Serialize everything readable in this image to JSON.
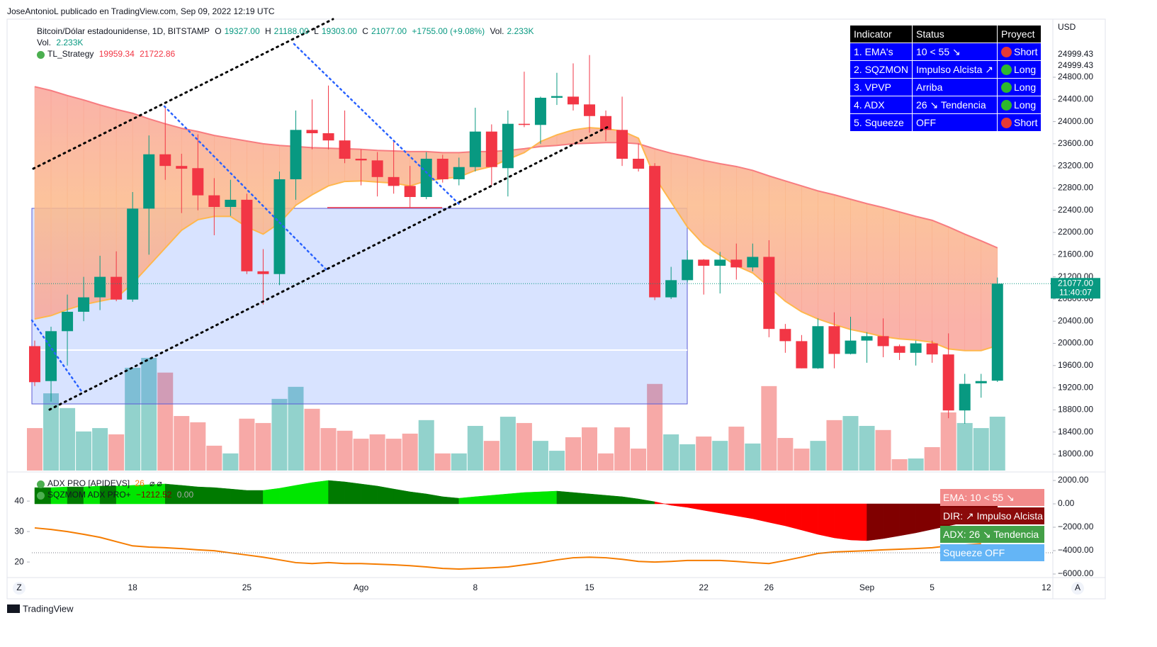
{
  "header": "JoseAntonioL publicado en TradingView.com, Sep 09, 2022 12:19 UTC",
  "footer": "TradingView",
  "buttons": [
    "Z",
    "A"
  ],
  "chart_data": [
    {
      "type": "candlestick",
      "title": "Bitcoin/Dólar estadounidense, 1D, BITSTAMP",
      "ohlc_labels": [
        "O",
        "H",
        "L",
        "C"
      ],
      "ohlc_readout": [
        "19327.00",
        "21188.00",
        "19303.00",
        "21077.00"
      ],
      "change": "+1755.00 (+9.08%)",
      "volume_label": "Vol.",
      "volume_readout": "2.233K",
      "strategy_name": "TL_Strategy",
      "currency": "USD",
      "price_tag": "21077.00",
      "countdown": "11:40:07",
      "high_tags": [
        "24999.43",
        "24999.43"
      ],
      "categories": [
        null,
        null,
        null,
        null,
        null,
        null,
        "18",
        null,
        null,
        null,
        null,
        null,
        null,
        "25",
        null,
        null,
        null,
        null,
        null,
        null,
        "Ago",
        null,
        null,
        null,
        null,
        null,
        null,
        "8",
        null,
        null,
        null,
        null,
        null,
        null,
        "15",
        null,
        null,
        null,
        null,
        null,
        null,
        "22",
        null,
        null,
        null,
        "26",
        null,
        null,
        null,
        null,
        null,
        "Sep",
        null,
        null,
        null,
        "5",
        null,
        null,
        null,
        null,
        null,
        null,
        "12"
      ],
      "open": [
        19950,
        19320,
        20220,
        20570,
        20830,
        21200,
        20790,
        22430,
        23410,
        23200,
        23160,
        22670,
        22460,
        22590,
        21300,
        21250,
        22960,
        23850,
        23790,
        23660,
        23330,
        23300,
        23000,
        22840,
        22640,
        23330,
        22960,
        23180,
        23820,
        23160,
        23960,
        23940,
        24430,
        24450,
        24310,
        24100,
        23850,
        23330,
        23200,
        20830,
        21140,
        21510,
        21400,
        21510,
        21370,
        21560,
        20260,
        20040,
        19550,
        20310,
        19810,
        20050,
        20130,
        19950,
        19830,
        20000,
        19800,
        18790,
        19280,
        19327,
        null,
        null,
        null
      ],
      "high": [
        20050,
        20300,
        20880,
        21200,
        21580,
        21660,
        22730,
        23750,
        24280,
        23420,
        23770,
        22980,
        22950,
        22700,
        21700,
        23100,
        24200,
        24400,
        24650,
        24200,
        23500,
        23450,
        23650,
        23200,
        23450,
        23400,
        23350,
        24250,
        23950,
        24200,
        24900,
        24450,
        24880,
        25050,
        25200,
        24200,
        24450,
        23600,
        23250,
        21380,
        21680,
        21520,
        21650,
        21800,
        21800,
        21860,
        20350,
        20150,
        20450,
        20560,
        20480,
        20200,
        20450,
        19980,
        20050,
        20050,
        20180,
        19450,
        19450,
        21188,
        null,
        null,
        null
      ],
      "low": [
        19230,
        18950,
        19600,
        20400,
        20600,
        20760,
        20750,
        21600,
        22950,
        22350,
        22400,
        21950,
        22300,
        21250,
        20700,
        21050,
        22590,
        23500,
        23500,
        23250,
        22850,
        22650,
        22700,
        22450,
        22600,
        22900,
        22850,
        23100,
        22850,
        22650,
        23900,
        23600,
        24300,
        24200,
        23800,
        23650,
        23200,
        23100,
        20780,
        20800,
        21100,
        20880,
        20900,
        21150,
        21300,
        20110,
        19830,
        19550,
        19540,
        19550,
        19800,
        19650,
        19750,
        19700,
        19600,
        19650,
        18650,
        18550,
        19020,
        19303,
        null,
        null,
        null
      ],
      "close": [
        19300,
        20220,
        20570,
        20830,
        21200,
        20790,
        22430,
        23410,
        23200,
        23150,
        22670,
        22460,
        22590,
        21300,
        21250,
        22960,
        23850,
        23790,
        23660,
        23330,
        23300,
        23000,
        22840,
        22640,
        23330,
        22960,
        23180,
        23820,
        23180,
        23960,
        23940,
        24430,
        24460,
        24310,
        24100,
        23850,
        23330,
        23150,
        20830,
        21140,
        21510,
        21400,
        21510,
        21370,
        21560,
        20260,
        20040,
        19550,
        20310,
        19810,
        20050,
        20130,
        19950,
        19830,
        20000,
        19800,
        18790,
        19270,
        19320,
        21077,
        null,
        null,
        null
      ],
      "volume": [
        1.76,
        3.2,
        2.59,
        1.62,
        1.76,
        1.5,
        4.26,
        4.67,
        4.06,
        2.26,
        2.0,
        1.03,
        0.71,
        2.15,
        1.97,
        2.97,
        3.47,
        2.56,
        1.76,
        1.65,
        1.32,
        1.5,
        1.32,
        1.53,
        2.09,
        0.71,
        0.71,
        1.85,
        1.23,
        2.23,
        1.97,
        1.23,
        0.82,
        1.38,
        1.79,
        0.71,
        1.79,
        0.91,
        3.59,
        1.5,
        1.09,
        1.41,
        1.23,
        1.82,
        1.12,
        3.5,
        1.35,
        0.91,
        1.23,
        2.09,
        2.26,
        1.85,
        1.68,
        0.47,
        0.5,
        0.97,
        2.41,
        1.97,
        1.76,
        2.233,
        null,
        null,
        null
      ],
      "ema_fast": [
        20440,
        20500,
        20610,
        20700,
        20760,
        20820,
        21080,
        21400,
        21720,
        22040,
        22230,
        22290,
        22290,
        22100,
        21970,
        22170,
        22490,
        22680,
        22840,
        22920,
        22930,
        22910,
        22890,
        22840,
        22930,
        22970,
        23000,
        23120,
        23190,
        23320,
        23440,
        23640,
        23760,
        23850,
        23890,
        23870,
        23830,
        23700,
        23000,
        22550,
        22100,
        21780,
        21590,
        21400,
        21270,
        21020,
        20760,
        20570,
        20440,
        20340,
        20250,
        20190,
        20120,
        20080,
        20060,
        20020,
        19900,
        19870,
        19870,
        19959.34,
        null,
        null,
        null
      ],
      "ema_slow": [
        24630,
        24560,
        24470,
        24390,
        24300,
        24220,
        24150,
        24050,
        23960,
        23880,
        23820,
        23750,
        23700,
        23650,
        23600,
        23570,
        23550,
        23530,
        23520,
        23510,
        23500,
        23480,
        23470,
        23460,
        23460,
        23440,
        23440,
        23460,
        23460,
        23480,
        23510,
        23550,
        23570,
        23600,
        23610,
        23620,
        23620,
        23600,
        23510,
        23430,
        23370,
        23300,
        23240,
        23190,
        23120,
        23020,
        22930,
        22840,
        22750,
        22680,
        22600,
        22520,
        22450,
        22370,
        22290,
        22220,
        22100,
        21970,
        21850,
        21722.86,
        null,
        null,
        null
      ],
      "up_color": "#089981",
      "down_color": "#f23645",
      "volume_up_color": "#92d2cc",
      "volume_down_color": "#f7a9a7",
      "ema_fast_color": "#ffb74d",
      "ema_slow_color": "#f77c80",
      "ylim": [
        17706,
        25848
      ],
      "yticks": [
        {
          "value": 18000,
          "label": "18000.00"
        },
        {
          "value": 18400,
          "label": "18400.00"
        },
        {
          "value": 18800,
          "label": "18800.00"
        },
        {
          "value": 19200,
          "label": "19200.00"
        },
        {
          "value": 19600,
          "label": "19600.00"
        },
        {
          "value": 20000,
          "label": "20000.00"
        },
        {
          "value": 20400,
          "label": "20400.00"
        },
        {
          "value": 20800,
          "label": "20800.00"
        },
        {
          "value": 21200,
          "label": "21200.00"
        },
        {
          "value": 21600,
          "label": "21600.00"
        },
        {
          "value": 22000,
          "label": "22000.00"
        },
        {
          "value": 22400,
          "label": "22400.00"
        },
        {
          "value": 22800,
          "label": "22800.00"
        },
        {
          "value": 23200,
          "label": "23200.00"
        },
        {
          "value": 23600,
          "label": "23600.00"
        },
        {
          "value": 24000,
          "label": "24000.00"
        },
        {
          "value": 24400,
          "label": "24400.00"
        },
        {
          "value": 24800,
          "label": "24800.00"
        }
      ]
    },
    {
      "type": "indicator",
      "series": [
        {
          "name": "ADX PRO [APIDEVS]",
          "color": "#f57c00",
          "values": [
            31.2,
            30.7,
            30,
            29.1,
            28.1,
            26.7,
            25.3,
            24.9,
            24.7,
            24.4,
            24,
            23.7,
            23,
            22.3,
            21.6,
            20.7,
            19.8,
            19.5,
            19.8,
            19.5,
            19.5,
            19.3,
            19.1,
            18.8,
            18.4,
            17.9,
            17.7,
            17.9,
            18.1,
            18.4,
            19.1,
            19.8,
            20.7,
            21.4,
            21.6,
            21.4,
            20.9,
            20.2,
            20,
            20.2,
            20.5,
            20.5,
            20.5,
            20.2,
            19.8,
            19.5,
            20.5,
            21.6,
            22.8,
            23.3,
            23.5,
            23.7,
            24,
            24.2,
            24.4,
            24.7,
            25.3,
            25.6,
            26,
            null,
            null,
            null,
            null
          ]
        },
        {
          "name": "SQZMOM ADX PRO+",
          "axis": "y2",
          "colors": [
            "#00e600",
            "#007a00",
            "#ff0000",
            "#800000"
          ],
          "values": [
            1390,
            1390,
            1450,
            1450,
            1520,
            1520,
            1580,
            1640,
            1700,
            1580,
            1450,
            1390,
            1270,
            1150,
            1150,
            1330,
            1580,
            1820,
            2000,
            1880,
            1700,
            1520,
            1270,
            1030,
            850,
            610,
            480,
            610,
            730,
            850,
            970,
            1030,
            1090,
            970,
            850,
            730,
            610,
            420,
            180,
            -120,
            -300,
            -550,
            -790,
            -1030,
            -1270,
            -1580,
            -1880,
            -2240,
            -2610,
            -2910,
            -3090,
            -3150,
            -2970,
            -2730,
            -2480,
            -2180,
            -1880,
            -1580,
            -1330,
            -1212.52,
            null,
            null,
            null
          ]
        }
      ],
      "readouts": [
        "⌀ ⌀",
        "−1212.52",
        "0.00"
      ],
      "ylim": [
        14.9,
        49.1
      ],
      "yticks": [
        40,
        30,
        20
      ],
      "y2lim": [
        -6303,
        2606
      ],
      "y2ticks": [
        {
          "value": 2000,
          "label": "2000.00"
        },
        {
          "value": 0,
          "label": "0.00"
        },
        {
          "value": -2000,
          "label": "−2000.00"
        },
        {
          "value": -4000,
          "label": "−4000.00"
        },
        {
          "value": -6000,
          "label": "−6000.00"
        }
      ]
    }
  ],
  "table": {
    "header": [
      "Indicator",
      "Status",
      "Proyect"
    ],
    "rows": [
      {
        "cells": [
          "1. EMA's",
          "10 < 55 ↘",
          "Short"
        ],
        "dot": "#e53935"
      },
      {
        "cells": [
          "2. SQZMON",
          "Impulso Alcista ↗",
          "Long"
        ],
        "dot": "#2db82d"
      },
      {
        "cells": [
          "3. VPVP",
          "Arriba",
          "Long"
        ],
        "dot": "#2db82d"
      },
      {
        "cells": [
          "4. ADX",
          "26 ↘ Tendencia",
          "Long"
        ],
        "dot": "#2db82d"
      },
      {
        "cells": [
          "5. Squeeze",
          "OFF",
          "Short"
        ],
        "dot": "#e53935"
      }
    ]
  },
  "badges": [
    {
      "text": "EMA: 10 < 55 ↘",
      "color": "#f28b8b"
    },
    {
      "text": "DIR: ↗ Impulso Alcista",
      "color": "#8b0a0a"
    },
    {
      "text": "ADX: 26 ↘ Tendencia",
      "color": "#43a047"
    },
    {
      "text": "Squeeze OFF",
      "color": "#64b5f6"
    }
  ]
}
